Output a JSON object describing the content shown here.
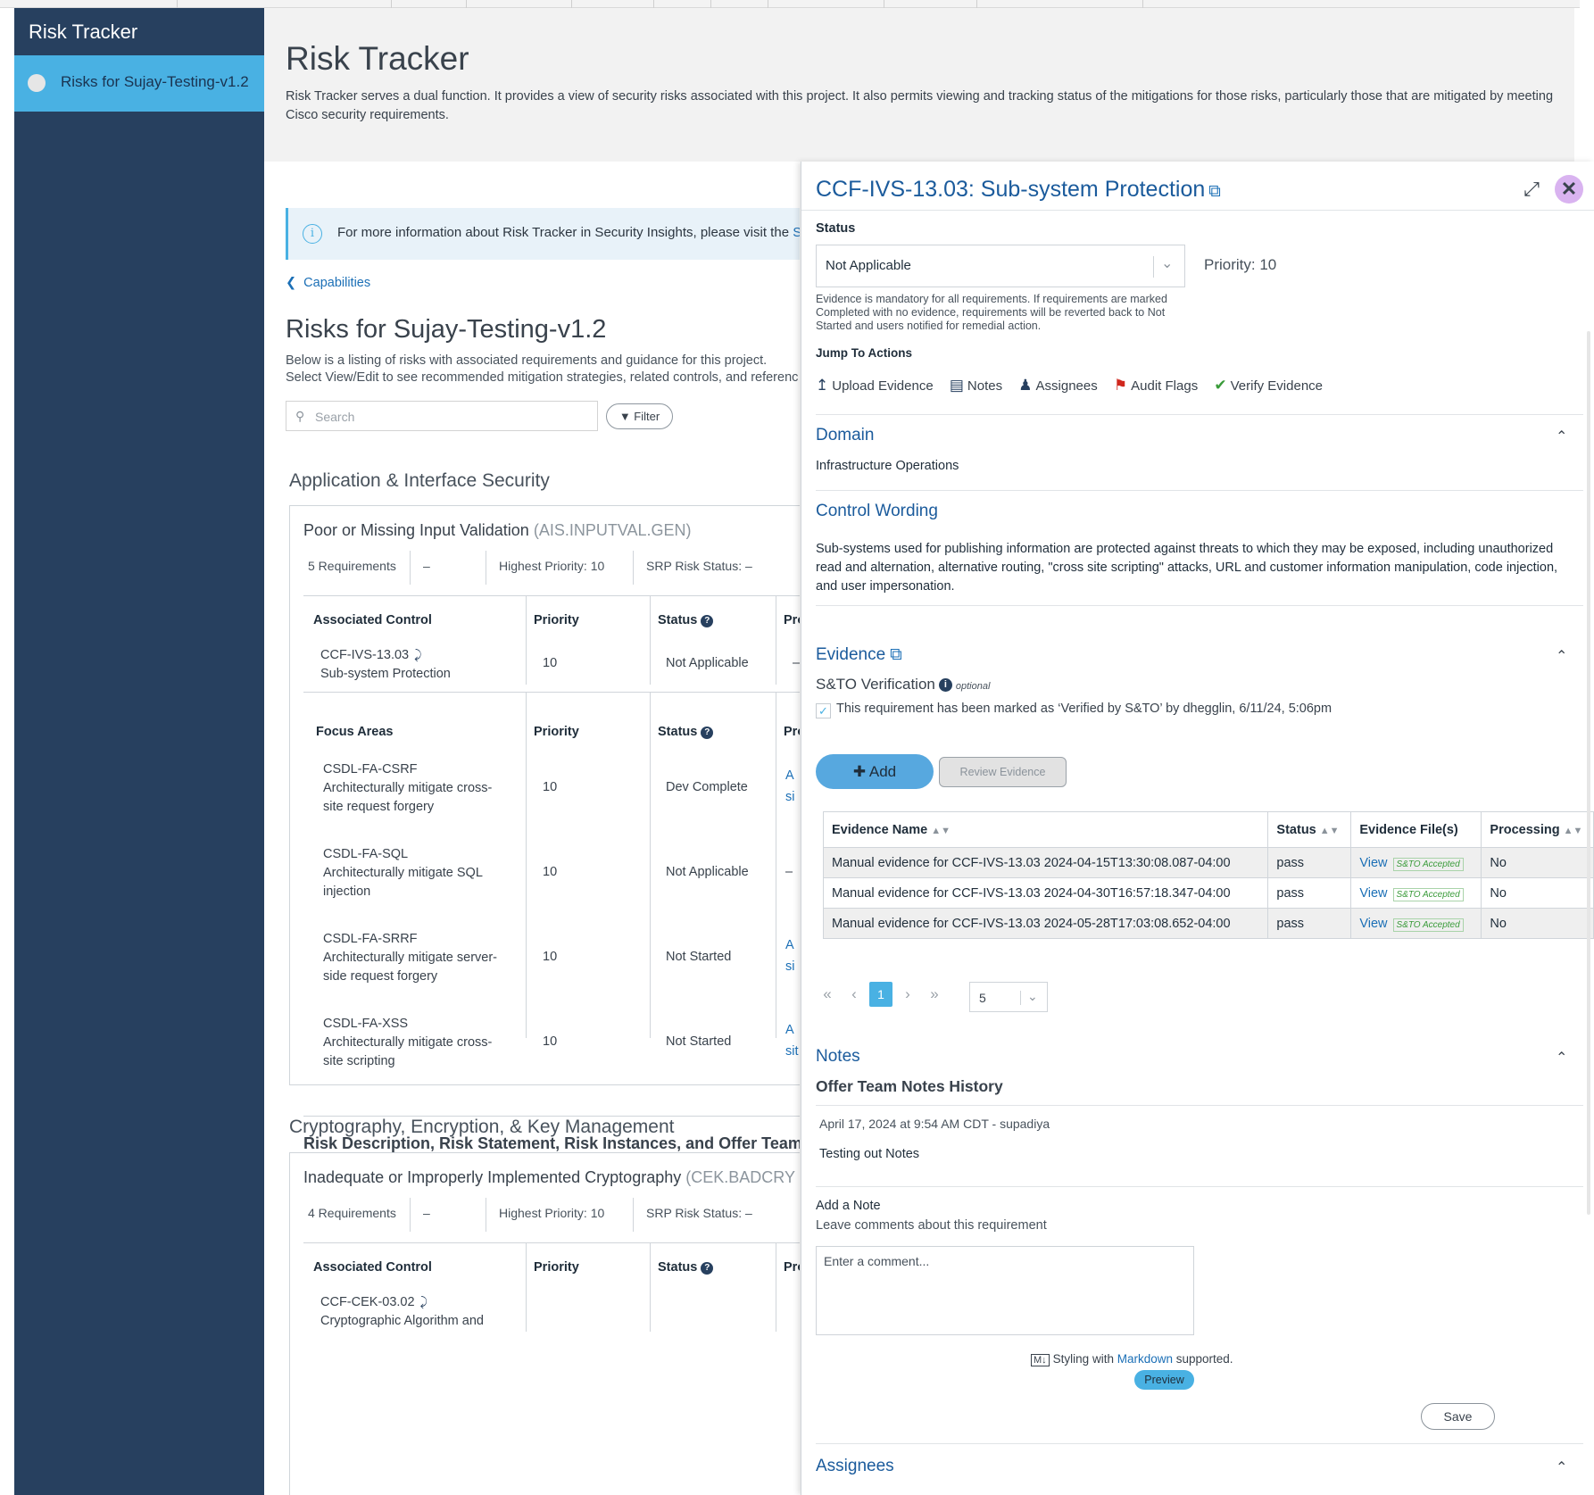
{
  "sidebar": {
    "title": "Risk Tracker",
    "items": [
      {
        "label": "Risks for Sujay-Testing-v1.2"
      }
    ]
  },
  "header": {
    "title": "Risk Tracker",
    "description": "Risk Tracker serves a dual function. It provides a view of security risks associated with this project. It also permits viewing and tracking status of the mitigations for those risks, particularly those that are mitigated by meeting Cisco security requirements."
  },
  "main": {
    "info": {
      "text": "For more information about Risk Tracker in Security Insights, please visit the ",
      "link": "Se"
    },
    "breadcrumb": "Capabilities",
    "title": "Risks for Sujay-Testing-v1.2",
    "desc1": "Below is a listing of risks with associated requirements and guidance for this project.",
    "desc2": "Select View/Edit to see recommended mitigation strategies, related controls, and referenc",
    "search_placeholder": "Search",
    "filter_label": "Filter",
    "groups": [
      {
        "title": "Application & Interface Security",
        "card": {
          "name": "Poor or Missing Input Validation",
          "code": "(AIS.INPUTVAL.GEN)",
          "stats": [
            "5 Requirements",
            "–",
            "Highest Priority: 10",
            "SRP Risk Status: –"
          ],
          "control_headers": [
            "Associated Control",
            "Priority",
            "Status",
            "Pro"
          ],
          "control": {
            "id": "CCF-IVS-13.03",
            "name": "Sub-system Protection",
            "priority": "10",
            "status": "Not Applicable",
            "pro": "–"
          },
          "focus_headers": [
            "Focus Areas",
            "Priority",
            "Status",
            "Pro"
          ],
          "focus": [
            {
              "id": "CSDL-FA-CSRF",
              "l1": "Architecturally mitigate cross-",
              "l2": "site request forgery",
              "priority": "10",
              "status": "Dev Complete",
              "p1": "A",
              "p2": "si"
            },
            {
              "id": "CSDL-FA-SQL",
              "l1": "Architecturally mitigate SQL",
              "l2": "injection",
              "priority": "10",
              "status": "Not Applicable",
              "p1": "–",
              "p2": ""
            },
            {
              "id": "CSDL-FA-SRRF",
              "l1": "Architecturally mitigate server-",
              "l2": "side request forgery",
              "priority": "10",
              "status": "Not Started",
              "p1": "A",
              "p2": "si"
            },
            {
              "id": "CSDL-FA-XSS",
              "l1": "Architecturally mitigate cross-",
              "l2": "site scripting",
              "priority": "10",
              "status": "Not Started",
              "p1": "A",
              "p2": "sit"
            }
          ],
          "footer": "Risk Description, Risk Statement, Risk Instances, and Offer Team"
        }
      },
      {
        "title": "Cryptography, Encryption, & Key Management",
        "card": {
          "name": "Inadequate or Improperly Implemented Cryptography",
          "code": "(CEK.BADCRY",
          "stats": [
            "4 Requirements",
            "–",
            "Highest Priority: 10",
            "SRP Risk Status: –"
          ],
          "control_headers": [
            "Associated Control",
            "Priority",
            "Status",
            "Pro"
          ],
          "control": {
            "id": "CCF-CEK-03.02",
            "name": "Cryptographic Algorithm and"
          }
        }
      }
    ]
  },
  "panel": {
    "title": "CCF-IVS-13.03: Sub-system Protection",
    "status_label": "Status",
    "status_value": "Not Applicable",
    "priority": "Priority: 10",
    "hint": "Evidence is mandatory for all requirements. If requirements are marked Completed with no evidence, requirements will be reverted back to Not Started and users notified for remedial action.",
    "jump_label": "Jump To Actions",
    "actions": [
      "Upload Evidence",
      "Notes",
      "Assignees",
      "Audit Flags",
      "Verify Evidence"
    ],
    "domain": {
      "heading": "Domain",
      "value": "Infrastructure Operations"
    },
    "control_wording": {
      "heading": "Control Wording",
      "text": "Sub-systems used for publishing information are protected against threats to which they may be exposed, including unauthorized read and alternation, alternative routing, \"cross site scripting\" attacks, URL and customer information manipulation, code injection, and user impersonation."
    },
    "evidence": {
      "heading": "Evidence",
      "verification_label": "S&TO Verification",
      "optional": "optional",
      "verified_text": "This requirement has been marked as ‘Verified by S&TO’ by dhegglin, 6/11/24, 5:06pm",
      "add_label": "Add",
      "review_label": "Review Evidence",
      "columns": [
        "Evidence Name",
        "Status",
        "Evidence File(s)",
        "Processing"
      ],
      "rows": [
        {
          "name": "Manual evidence for CCF-IVS-13.03 2024-04-15T13:30:08.087-04:00",
          "status": "pass",
          "file": "View",
          "badge": "S&TO Accepted",
          "processing": "No"
        },
        {
          "name": "Manual evidence for CCF-IVS-13.03 2024-04-30T16:57:18.347-04:00",
          "status": "pass",
          "file": "View",
          "badge": "S&TO Accepted",
          "processing": "No"
        },
        {
          "name": "Manual evidence for CCF-IVS-13.03 2024-05-28T17:03:08.652-04:00",
          "status": "pass",
          "file": "View",
          "badge": "S&TO Accepted",
          "processing": "No"
        }
      ],
      "page": "1",
      "page_size": "5"
    },
    "notes": {
      "heading": "Notes",
      "history_title": "Offer Team Notes History",
      "entry_meta": "April 17, 2024 at 9:54 AM CDT - supadiya",
      "entry_text": "Testing out Notes",
      "add_label": "Add a Note",
      "add_hint": "Leave comments about this requirement",
      "placeholder": "Enter a comment...",
      "md_prefix": "Styling with ",
      "md_link": "Markdown",
      "md_suffix": " supported.",
      "preview_label": "Preview",
      "save_label": "Save"
    },
    "assignees": {
      "heading": "Assignees"
    }
  }
}
